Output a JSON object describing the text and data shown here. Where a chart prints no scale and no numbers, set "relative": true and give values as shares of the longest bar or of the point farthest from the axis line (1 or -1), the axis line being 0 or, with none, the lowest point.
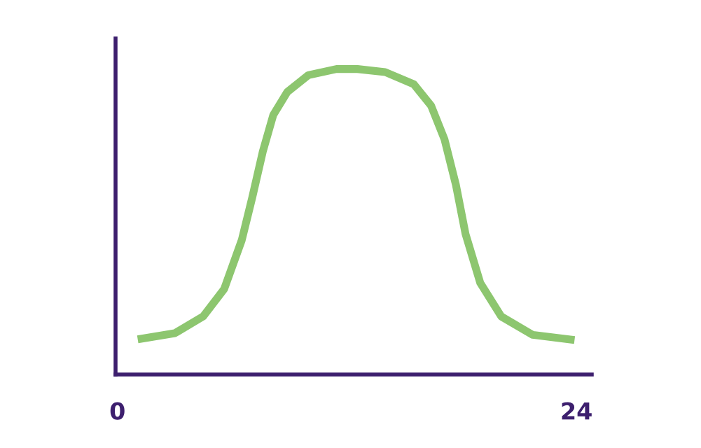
{
  "chart_data": {
    "type": "line",
    "relative": true,
    "xlim": [
      -0.1,
      24.8
    ],
    "xticks": [
      0,
      24
    ],
    "x": [
      1.06,
      3.0,
      4.48,
      5.58,
      6.5,
      7.05,
      7.6,
      8.15,
      8.88,
      9.98,
      11.45,
      12.55,
      14.0,
      15.5,
      16.4,
      17.1,
      17.7,
      18.2,
      18.97,
      20.07,
      21.7,
      23.9
    ],
    "series": [
      {
        "color": "#8dc66f",
        "values": [
          0.115,
          0.135,
          0.19,
          0.28,
          0.44,
          0.58,
          0.73,
          0.85,
          0.925,
          0.98,
          1.0,
          1.0,
          0.99,
          0.95,
          0.88,
          0.77,
          0.62,
          0.46,
          0.3,
          0.19,
          0.13,
          0.113
        ]
      }
    ],
    "grid": false,
    "legend": false,
    "marker": "none",
    "line_style": "solid"
  }
}
